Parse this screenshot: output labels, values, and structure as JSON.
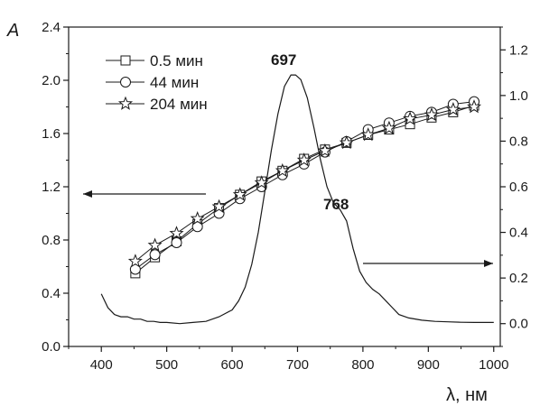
{
  "chart_data": {
    "type": "line",
    "y_axis_label": "A",
    "x_axis_label": "λ, нм",
    "x_range": [
      350,
      1010
    ],
    "y_left_range": [
      0.0,
      2.4
    ],
    "y_right_range": [
      -0.1,
      1.3
    ],
    "x_ticks": [
      "400",
      "500",
      "600",
      "700",
      "800",
      "900",
      "1000"
    ],
    "y_left_ticks": [
      "0.0",
      "0.4",
      "0.8",
      "1.2",
      "1.6",
      "2.0",
      "2.4"
    ],
    "y_right_ticks": [
      "0.0",
      "0.2",
      "0.4",
      "0.6",
      "0.8",
      "1.0",
      "1.2"
    ],
    "grid": false,
    "legend_position": "top-left",
    "annotations": [
      {
        "text": "697",
        "x": 697,
        "y_right": 1.09
      },
      {
        "text": "768",
        "x": 768,
        "y_right": 0.5
      }
    ],
    "arrows": [
      {
        "direction": "left",
        "axis": "left"
      },
      {
        "direction": "right",
        "axis": "right"
      }
    ],
    "series": [
      {
        "name": "0.5 мин",
        "marker": "square",
        "axis": "left",
        "x": [
          452,
          482,
          515,
          547,
          580,
          612,
          645,
          677,
          710,
          742,
          775,
          808,
          840,
          872,
          905,
          938,
          970
        ],
        "y": [
          0.55,
          0.67,
          0.79,
          0.92,
          1.04,
          1.14,
          1.24,
          1.32,
          1.41,
          1.48,
          1.53,
          1.59,
          1.63,
          1.67,
          1.72,
          1.76,
          1.81
        ]
      },
      {
        "name": "44 мин",
        "marker": "circle",
        "axis": "left",
        "x": [
          452,
          482,
          515,
          547,
          580,
          612,
          645,
          677,
          710,
          742,
          775,
          808,
          840,
          872,
          905,
          938,
          970
        ],
        "y": [
          0.58,
          0.69,
          0.78,
          0.9,
          1.0,
          1.11,
          1.2,
          1.29,
          1.37,
          1.46,
          1.54,
          1.63,
          1.68,
          1.73,
          1.76,
          1.82,
          1.84
        ]
      },
      {
        "name": "204 мин",
        "marker": "star",
        "axis": "left",
        "x": [
          452,
          482,
          515,
          547,
          580,
          612,
          645,
          677,
          710,
          742,
          775,
          808,
          840,
          872,
          905,
          938,
          970
        ],
        "y": [
          0.64,
          0.76,
          0.85,
          0.96,
          1.05,
          1.14,
          1.23,
          1.32,
          1.4,
          1.47,
          1.53,
          1.59,
          1.64,
          1.71,
          1.74,
          1.78,
          1.8
        ]
      },
      {
        "name": "",
        "marker": "none",
        "axis": "right",
        "x": [
          400,
          410,
          420,
          430,
          440,
          450,
          460,
          470,
          480,
          490,
          500,
          520,
          540,
          560,
          580,
          600,
          610,
          620,
          630,
          640,
          650,
          660,
          670,
          680,
          690,
          697,
          705,
          715,
          725,
          735,
          745,
          755,
          765,
          775,
          785,
          795,
          805,
          815,
          825,
          835,
          845,
          855,
          870,
          890,
          910,
          930,
          950,
          970,
          990,
          1000
        ],
        "y": [
          0.13,
          0.07,
          0.04,
          0.03,
          0.03,
          0.02,
          0.02,
          0.01,
          0.01,
          0.005,
          0.005,
          0.0,
          0.005,
          0.01,
          0.03,
          0.06,
          0.1,
          0.16,
          0.26,
          0.4,
          0.58,
          0.76,
          0.92,
          1.04,
          1.09,
          1.09,
          1.07,
          0.99,
          0.86,
          0.72,
          0.6,
          0.53,
          0.5,
          0.45,
          0.33,
          0.23,
          0.18,
          0.15,
          0.13,
          0.1,
          0.07,
          0.04,
          0.025,
          0.015,
          0.01,
          0.008,
          0.006,
          0.005,
          0.005,
          0.005
        ]
      }
    ]
  }
}
